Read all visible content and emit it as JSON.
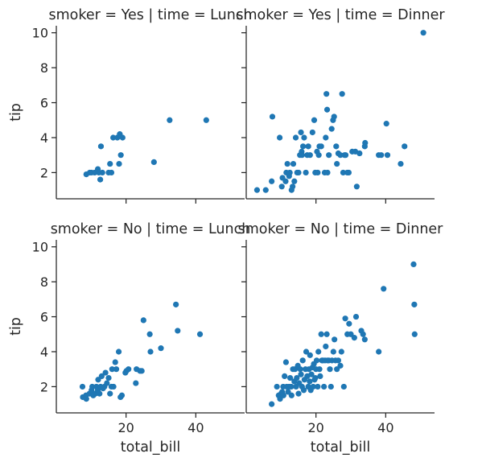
{
  "chart_data": {
    "type": "scatter",
    "layout": "facet-grid",
    "xlabel": "total_bill",
    "ylabel": "tip",
    "xlim": [
      0,
      54
    ],
    "ylim": [
      0.5,
      10.4
    ],
    "xticks": [
      20,
      40
    ],
    "xtick_labels": [
      "20",
      "40"
    ],
    "yticks": [
      2,
      4,
      6,
      8,
      10
    ],
    "ytick_labels": [
      "2",
      "4",
      "6",
      "8",
      "10"
    ],
    "marker_color": "#1f77b4",
    "grid": false,
    "panels": [
      {
        "title": "smoker = Yes | time = Lunch",
        "row": 0,
        "col": 0,
        "points": [
          [
            8.6,
            1.9
          ],
          [
            9.6,
            2.0
          ],
          [
            10.1,
            2.0
          ],
          [
            11.0,
            2.0
          ],
          [
            11.9,
            2.2
          ],
          [
            12.2,
            2.0
          ],
          [
            12.6,
            1.6
          ],
          [
            12.8,
            3.5
          ],
          [
            13.2,
            2.0
          ],
          [
            15.0,
            2.0
          ],
          [
            15.4,
            2.5
          ],
          [
            15.8,
            2.0
          ],
          [
            16.3,
            4.0
          ],
          [
            17.5,
            4.0
          ],
          [
            18.0,
            2.5
          ],
          [
            18.2,
            4.2
          ],
          [
            18.5,
            3.0
          ],
          [
            19.0,
            4.0
          ],
          [
            28.0,
            2.6
          ],
          [
            32.5,
            5.0
          ],
          [
            43.0,
            5.0
          ]
        ]
      },
      {
        "title": "smoker = Yes | time = Dinner",
        "row": 0,
        "col": 1,
        "points": [
          [
            3.1,
            1.0
          ],
          [
            5.6,
            1.0
          ],
          [
            7.3,
            1.5
          ],
          [
            7.5,
            5.2
          ],
          [
            9.6,
            4.0
          ],
          [
            10.2,
            1.2
          ],
          [
            10.4,
            1.7
          ],
          [
            11.3,
            1.5
          ],
          [
            11.5,
            2.0
          ],
          [
            11.8,
            2.5
          ],
          [
            12.3,
            1.8
          ],
          [
            12.5,
            2.0
          ],
          [
            13.0,
            1.0
          ],
          [
            13.3,
            1.2
          ],
          [
            13.5,
            2.5
          ],
          [
            13.8,
            1.5
          ],
          [
            14.2,
            4.0
          ],
          [
            14.6,
            2.0
          ],
          [
            15.0,
            2.0
          ],
          [
            15.4,
            3.0
          ],
          [
            15.7,
            4.3
          ],
          [
            15.9,
            3.2
          ],
          [
            16.0,
            3.0
          ],
          [
            16.3,
            3.5
          ],
          [
            16.6,
            4.0
          ],
          [
            17.1,
            2.0
          ],
          [
            17.5,
            3.0
          ],
          [
            17.8,
            3.5
          ],
          [
            18.3,
            3.0
          ],
          [
            19.0,
            4.3
          ],
          [
            19.5,
            5.0
          ],
          [
            19.8,
            2.0
          ],
          [
            20.3,
            3.2
          ],
          [
            20.5,
            2.0
          ],
          [
            20.8,
            3.0
          ],
          [
            21.0,
            3.5
          ],
          [
            21.5,
            3.5
          ],
          [
            22.5,
            2.0
          ],
          [
            22.8,
            4.0
          ],
          [
            23.0,
            6.5
          ],
          [
            23.2,
            5.6
          ],
          [
            23.3,
            2.0
          ],
          [
            23.7,
            3.0
          ],
          [
            24.5,
            4.5
          ],
          [
            24.9,
            5.0
          ],
          [
            25.2,
            5.2
          ],
          [
            25.8,
            3.5
          ],
          [
            26.0,
            2.5
          ],
          [
            26.4,
            3.1
          ],
          [
            27.0,
            3.0
          ],
          [
            27.5,
            6.5
          ],
          [
            27.8,
            2.0
          ],
          [
            28.2,
            3.0
          ],
          [
            28.5,
            3.0
          ],
          [
            29.0,
            2.0
          ],
          [
            29.4,
            2.0
          ],
          [
            30.4,
            3.2
          ],
          [
            31.3,
            3.2
          ],
          [
            31.7,
            1.2
          ],
          [
            32.5,
            3.1
          ],
          [
            34.0,
            3.5
          ],
          [
            34.1,
            3.7
          ],
          [
            38.0,
            3.0
          ],
          [
            38.7,
            3.0
          ],
          [
            40.2,
            4.8
          ],
          [
            40.5,
            3.0
          ],
          [
            44.3,
            2.5
          ],
          [
            45.4,
            3.5
          ],
          [
            50.8,
            10.0
          ]
        ]
      },
      {
        "title": "smoker = No | time = Lunch",
        "row": 1,
        "col": 0,
        "points": [
          [
            7.5,
            2.0
          ],
          [
            7.6,
            1.4
          ],
          [
            8.5,
            1.5
          ],
          [
            8.6,
            1.3
          ],
          [
            9.5,
            1.6
          ],
          [
            10.1,
            1.8
          ],
          [
            10.3,
            2.0
          ],
          [
            10.6,
            1.5
          ],
          [
            11.2,
            1.6
          ],
          [
            11.5,
            2.0
          ],
          [
            11.9,
            1.8
          ],
          [
            12.0,
            2.4
          ],
          [
            12.4,
            1.6
          ],
          [
            12.7,
            2.0
          ],
          [
            13.0,
            2.6
          ],
          [
            13.4,
            1.9
          ],
          [
            13.8,
            2.0
          ],
          [
            14.1,
            2.8
          ],
          [
            14.5,
            2.2
          ],
          [
            15.0,
            2.5
          ],
          [
            15.4,
            1.6
          ],
          [
            15.8,
            2.0
          ],
          [
            16.0,
            3.0
          ],
          [
            16.4,
            2.0
          ],
          [
            16.9,
            3.4
          ],
          [
            17.2,
            3.0
          ],
          [
            17.9,
            4.0
          ],
          [
            18.4,
            1.4
          ],
          [
            18.8,
            1.5
          ],
          [
            19.8,
            2.8
          ],
          [
            20.1,
            2.9
          ],
          [
            20.7,
            3.0
          ],
          [
            22.8,
            2.2
          ],
          [
            23.0,
            3.0
          ],
          [
            24.0,
            2.9
          ],
          [
            24.5,
            2.9
          ],
          [
            25.0,
            5.8
          ],
          [
            26.8,
            5.0
          ],
          [
            27.0,
            4.0
          ],
          [
            30.0,
            4.2
          ],
          [
            34.3,
            6.7
          ],
          [
            34.8,
            5.2
          ],
          [
            41.2,
            5.0
          ]
        ]
      },
      {
        "title": "smoker = No | time = Dinner",
        "row": 1,
        "col": 1,
        "points": [
          [
            7.3,
            1.0
          ],
          [
            8.8,
            2.0
          ],
          [
            9.3,
            1.5
          ],
          [
            9.7,
            1.3
          ],
          [
            10.0,
            1.6
          ],
          [
            10.3,
            1.7
          ],
          [
            10.6,
            2.0
          ],
          [
            10.7,
            1.5
          ],
          [
            11.0,
            2.6
          ],
          [
            11.4,
            3.4
          ],
          [
            11.6,
            2.0
          ],
          [
            12.0,
            1.7
          ],
          [
            12.3,
            2.0
          ],
          [
            12.6,
            2.5
          ],
          [
            12.9,
            2.0
          ],
          [
            13.0,
            1.5
          ],
          [
            13.4,
            3.0
          ],
          [
            13.8,
            2.3
          ],
          [
            14.0,
            3.0
          ],
          [
            14.3,
            2.0
          ],
          [
            14.5,
            2.5
          ],
          [
            14.8,
            3.2
          ],
          [
            15.0,
            1.6
          ],
          [
            15.2,
            2.2
          ],
          [
            15.5,
            3.0
          ],
          [
            15.7,
            2.7
          ],
          [
            16.0,
            2.0
          ],
          [
            16.2,
            3.5
          ],
          [
            16.5,
            1.8
          ],
          [
            16.7,
            2.4
          ],
          [
            17.0,
            3.0
          ],
          [
            17.2,
            4.0
          ],
          [
            17.5,
            2.6
          ],
          [
            17.8,
            2.0
          ],
          [
            18.0,
            3.0
          ],
          [
            18.2,
            2.3
          ],
          [
            18.3,
            3.8
          ],
          [
            18.5,
            1.8
          ],
          [
            18.7,
            2.7
          ],
          [
            19.0,
            3.1
          ],
          [
            19.2,
            2.0
          ],
          [
            19.4,
            3.3
          ],
          [
            19.6,
            2.4
          ],
          [
            19.8,
            2.5
          ],
          [
            20.0,
            3.0
          ],
          [
            20.2,
            3.5
          ],
          [
            20.5,
            2.0
          ],
          [
            20.7,
            4.0
          ],
          [
            21.0,
            3.0
          ],
          [
            21.2,
            2.6
          ],
          [
            21.5,
            5.0
          ],
          [
            21.7,
            3.5
          ],
          [
            22.0,
            3.5
          ],
          [
            22.3,
            2.0
          ],
          [
            22.6,
            3.5
          ],
          [
            22.8,
            4.3
          ],
          [
            23.1,
            5.0
          ],
          [
            23.3,
            3.5
          ],
          [
            23.7,
            3.5
          ],
          [
            24.0,
            3.0
          ],
          [
            24.3,
            2.0
          ],
          [
            24.6,
            3.5
          ],
          [
            25.0,
            4.0
          ],
          [
            25.3,
            4.7
          ],
          [
            25.6,
            3.5
          ],
          [
            26.0,
            3.0
          ],
          [
            26.4,
            3.5
          ],
          [
            27.0,
            3.2
          ],
          [
            27.3,
            4.0
          ],
          [
            28.0,
            2.0
          ],
          [
            28.4,
            5.9
          ],
          [
            29.0,
            5.0
          ],
          [
            29.5,
            5.6
          ],
          [
            30.0,
            5.0
          ],
          [
            31.0,
            4.8
          ],
          [
            31.5,
            6.0
          ],
          [
            33.0,
            5.2
          ],
          [
            33.5,
            5.0
          ],
          [
            34.0,
            4.7
          ],
          [
            38.0,
            4.0
          ],
          [
            39.4,
            7.6
          ],
          [
            48.0,
            9.0
          ],
          [
            48.2,
            6.7
          ],
          [
            48.3,
            5.0
          ]
        ]
      }
    ]
  }
}
